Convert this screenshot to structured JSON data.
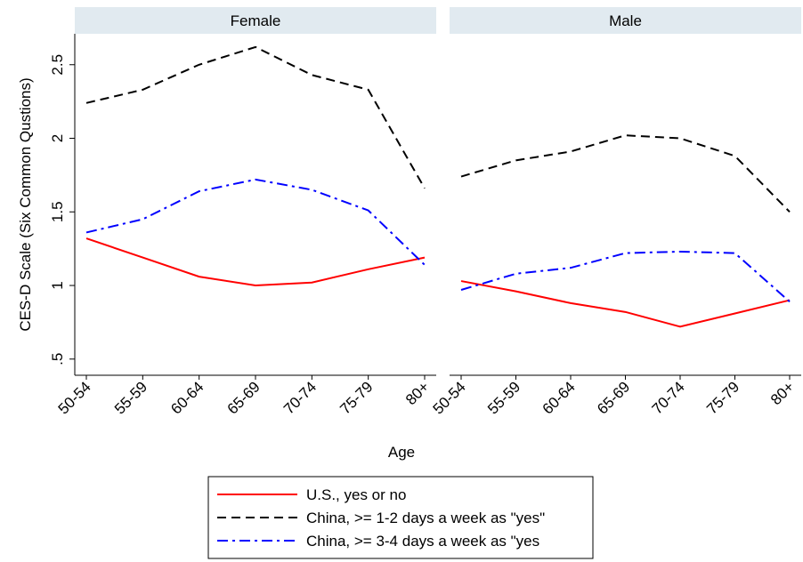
{
  "chart_data": {
    "type": "line",
    "ylabel": "CES-D Scale (Six Common Qustions)",
    "xlabel": "Age",
    "categories": [
      "50-54",
      "55-59",
      "60-64",
      "65-69",
      "70-74",
      "75-79",
      "80+"
    ],
    "ylim": [
      0.39,
      2.71
    ],
    "yticks": [
      {
        "value": 0.5,
        "label": ".5"
      },
      1,
      1.5,
      2,
      2.5
    ],
    "series": [
      {
        "name": "U.S., yes or no",
        "color": "#ff0000",
        "dash": "solid"
      },
      {
        "name": "China, >= 1-2 days a week as \"yes\"",
        "color": "#000000",
        "dash": "dash"
      },
      {
        "name": "China, >= 3-4 days a week as \"yes",
        "color": "#0000ff",
        "dash": "dashdot"
      }
    ],
    "panels": [
      {
        "title": "Female",
        "values": [
          [
            1.32,
            1.19,
            1.06,
            1.0,
            1.02,
            1.11,
            1.19
          ],
          [
            2.24,
            2.33,
            2.5,
            2.62,
            2.43,
            2.33,
            1.66
          ],
          [
            1.36,
            1.45,
            1.64,
            1.72,
            1.65,
            1.51,
            1.14
          ]
        ]
      },
      {
        "title": "Male",
        "values": [
          [
            1.03,
            0.96,
            0.88,
            0.82,
            0.72,
            0.81,
            0.9
          ],
          [
            1.74,
            1.85,
            1.91,
            2.02,
            2.0,
            1.88,
            1.5
          ],
          [
            0.97,
            1.08,
            1.12,
            1.22,
            1.23,
            1.22,
            0.89
          ]
        ]
      }
    ]
  }
}
